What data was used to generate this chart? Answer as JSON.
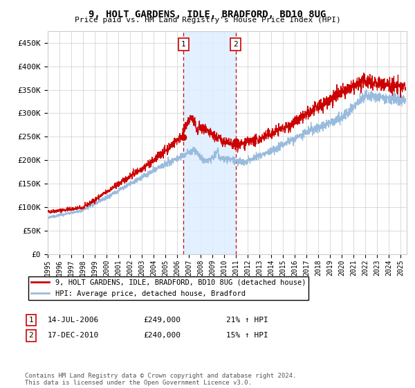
{
  "title": "9, HOLT GARDENS, IDLE, BRADFORD, BD10 8UG",
  "subtitle": "Price paid vs. HM Land Registry's House Price Index (HPI)",
  "legend_line1": "9, HOLT GARDENS, IDLE, BRADFORD, BD10 8UG (detached house)",
  "legend_line2": "HPI: Average price, detached house, Bradford",
  "table_rows": [
    {
      "num": "1",
      "date": "14-JUL-2006",
      "price": "£249,000",
      "hpi": "21% ↑ HPI"
    },
    {
      "num": "2",
      "date": "17-DEC-2010",
      "price": "£240,000",
      "hpi": "15% ↑ HPI"
    }
  ],
  "footer": "Contains HM Land Registry data © Crown copyright and database right 2024.\nThis data is licensed under the Open Government Licence v3.0.",
  "ylim": [
    0,
    475000
  ],
  "yticks": [
    0,
    50000,
    100000,
    150000,
    200000,
    250000,
    300000,
    350000,
    400000,
    450000
  ],
  "ytick_labels": [
    "£0",
    "£50K",
    "£100K",
    "£150K",
    "£200K",
    "£250K",
    "£300K",
    "£350K",
    "£400K",
    "£450K"
  ],
  "sale1_x": 2006.54,
  "sale1_y": 249000,
  "sale2_x": 2010.96,
  "sale2_y": 240000,
  "shade_x0": 2006.54,
  "shade_x1": 2010.96,
  "xlim_left": 1995.0,
  "xlim_right": 2025.5,
  "background_color": "#ffffff",
  "grid_color": "#cccccc",
  "red_color": "#cc0000",
  "blue_color": "#99bbdd",
  "shade_color": "#ddeeff"
}
